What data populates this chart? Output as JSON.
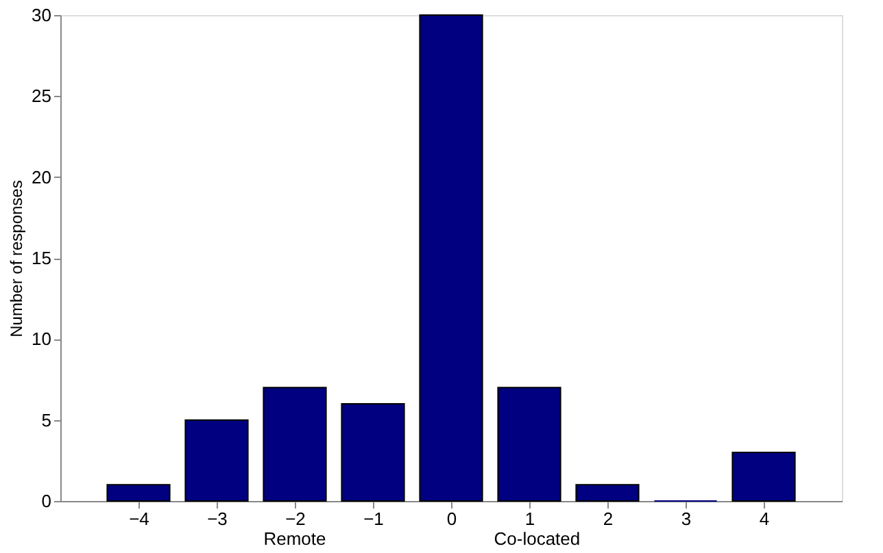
{
  "chart_data": {
    "type": "bar",
    "ylabel": "Number of responses",
    "x": [
      -4,
      -3,
      -2,
      -1,
      0,
      1,
      2,
      3,
      4
    ],
    "values": [
      1,
      5,
      7,
      6,
      30,
      7,
      1,
      0,
      3
    ],
    "color": "#000080",
    "xlim": [
      -5,
      5
    ],
    "xticks": [
      -4,
      -3,
      -2,
      -1,
      0,
      1,
      2,
      3,
      4
    ],
    "ylim": [
      0,
      30
    ],
    "yticks": [
      0,
      5,
      10,
      15,
      20,
      25,
      30
    ],
    "grid": false,
    "annotations": [
      "Remote",
      "Co-located"
    ]
  }
}
